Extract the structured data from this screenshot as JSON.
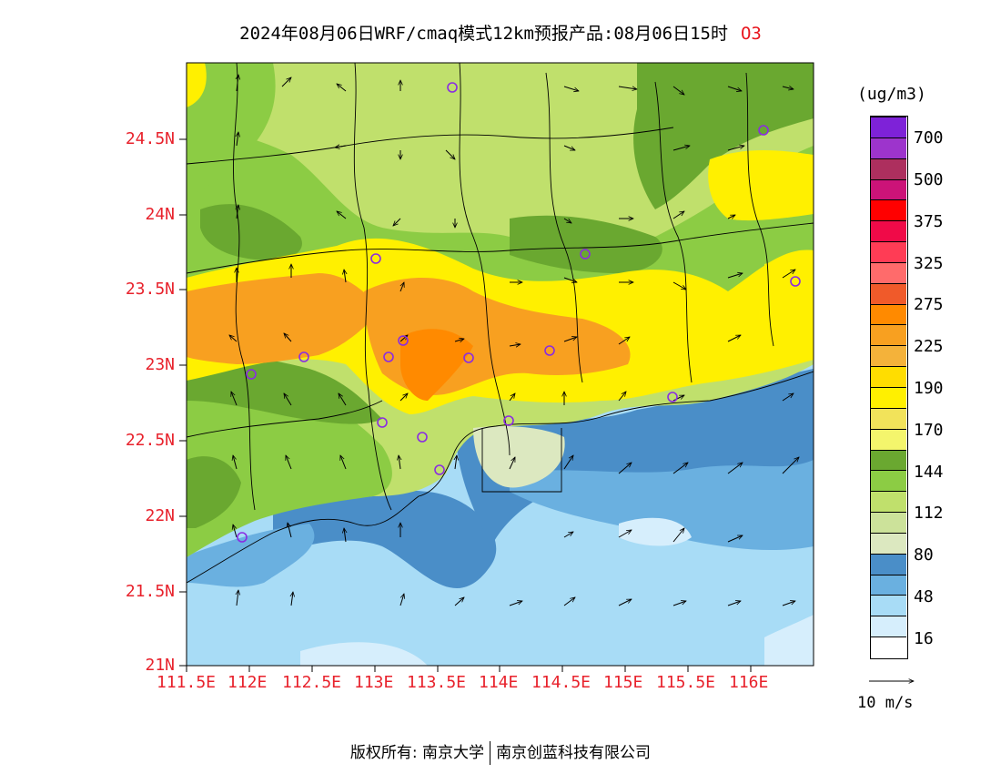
{
  "title": {
    "text": "2024年08月06日WRF/cmaq模式12km预报产品:08月06日15时",
    "species": "O3"
  },
  "map": {
    "lat_ticks": [
      "24.5N",
      "24N",
      "23.5N",
      "23N",
      "22.5N",
      "22N",
      "21.5N",
      "21N"
    ],
    "lon_ticks": [
      "111.5E",
      "112E",
      "112.5E",
      "113E",
      "113.5E",
      "114E",
      "114.5E",
      "115E",
      "115.5E",
      "116E"
    ],
    "lat_range": [
      21,
      25
    ],
    "lon_range": [
      111.5,
      116.5
    ]
  },
  "colorbar": {
    "units": "(ug/m3)",
    "labels": [
      "700",
      "500",
      "375",
      "325",
      "275",
      "225",
      "190",
      "170",
      "144",
      "112",
      "80",
      "48",
      "16"
    ],
    "colors": [
      "#7e22d8",
      "#9d34cc",
      "#ad2f5e",
      "#cc1378",
      "#ff0000",
      "#f00a48",
      "#ff3c55",
      "#ff6b6b",
      "#f05a2a",
      "#ff8a00",
      "#f8a020",
      "#f4b23a",
      "#ffdd00",
      "#fff000",
      "#f2e35a",
      "#f4f56c",
      "#6aa830",
      "#8ccc44",
      "#c0e06c",
      "#cce29a",
      "#dce8c0",
      "#4a8ec8",
      "#6ab0e0",
      "#a8dcf6",
      "#d6eefc",
      "#ffffff"
    ]
  },
  "wind": {
    "label": "10 m/s"
  },
  "footer": {
    "copyright_left": "版权所有: 南京大学",
    "copyright_right": "南京创蓝科技有限公司"
  }
}
